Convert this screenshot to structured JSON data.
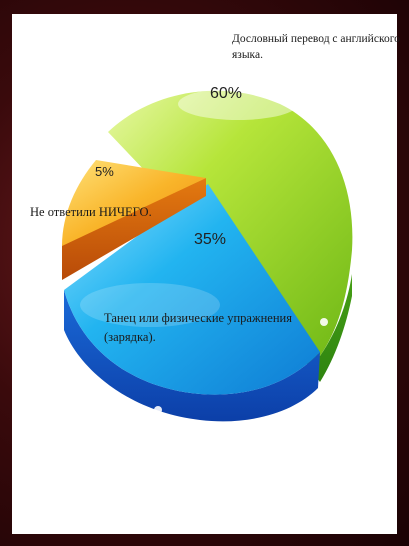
{
  "chart_data": {
    "type": "pie",
    "slices": [
      {
        "label": "Дословный перевод с английского языка.",
        "value": 60,
        "display": "60%"
      },
      {
        "label": "Танец или физические упражнения (зарядка).",
        "value": 35,
        "display": "35%"
      },
      {
        "label": "Не ответили НИЧЕГО.",
        "value": 5,
        "display": "5%"
      }
    ],
    "colors": {
      "green": "#8ccc1c",
      "green_dark": "#3e9a12",
      "blue": "#1aa8e8",
      "blue_dark": "#1660c8",
      "orange": "#f6a21a",
      "orange_dark": "#d25e0c"
    }
  },
  "labels": {
    "green_line1": "Дословный перевод с английского",
    "green_line2": "языка.",
    "blue_line1": "Танец или физические упражнения",
    "blue_line2": "(зарядка).",
    "orange_line1": "Не ответили НИЧЕГО."
  }
}
